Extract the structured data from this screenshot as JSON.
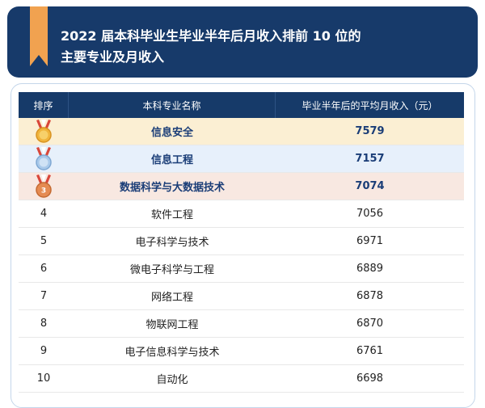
{
  "header": {
    "title_line1": "2022 届本科毕业生毕业半年后月收入排前 10 位的",
    "title_line2": "主要专业及月收入"
  },
  "table": {
    "columns": [
      "排序",
      "本科专业名称",
      "毕业半年后的平均月收入（元）"
    ],
    "rows": [
      {
        "rank": "1",
        "major": "信息安全",
        "income": "7579"
      },
      {
        "rank": "2",
        "major": "信息工程",
        "income": "7157"
      },
      {
        "rank": "3",
        "major": "数据科学与大数据技术",
        "income": "7074"
      },
      {
        "rank": "4",
        "major": "软件工程",
        "income": "7056"
      },
      {
        "rank": "5",
        "major": "电子科学与技术",
        "income": "6971"
      },
      {
        "rank": "6",
        "major": "微电子科学与工程",
        "income": "6889"
      },
      {
        "rank": "7",
        "major": "网络工程",
        "income": "6878"
      },
      {
        "rank": "8",
        "major": "物联网工程",
        "income": "6870"
      },
      {
        "rank": "9",
        "major": "电子信息科学与技术",
        "income": "6761"
      },
      {
        "rank": "10",
        "major": "自动化",
        "income": "6698"
      }
    ]
  },
  "icons": {
    "ribbon": "bookmark-ribbon-icon",
    "medals": [
      "gold-medal-icon",
      "silver-medal-icon",
      "bronze-medal-icon"
    ]
  },
  "colors": {
    "header_bg": "#173a6a",
    "ribbon": "#f1a250",
    "gold_row": "#fbefd3",
    "silver_row": "#e7f0fb",
    "bronze_row": "#f8e8e1"
  }
}
